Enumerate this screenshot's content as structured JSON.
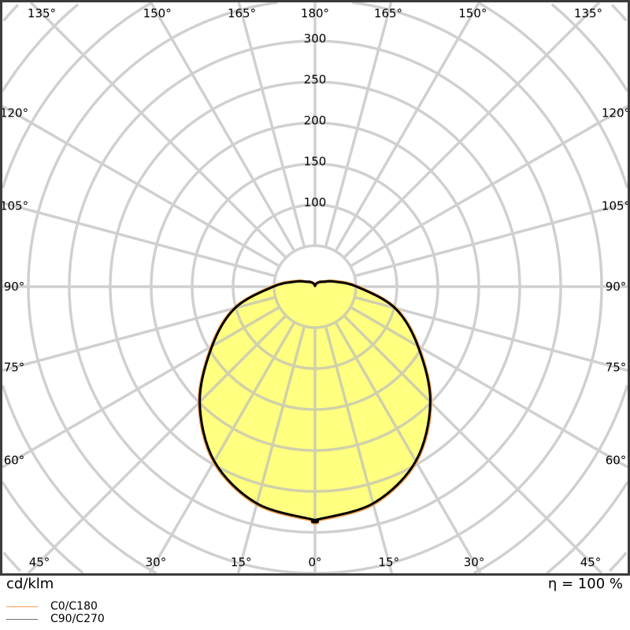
{
  "chart_data": {
    "type": "polar",
    "unit_label": "cd/klm",
    "efficiency_label": "η = 100 %",
    "radial_ticks": [
      100,
      150,
      200,
      250,
      300
    ],
    "radial_tick_labels": [
      "100",
      "150",
      "200",
      "250",
      "300"
    ],
    "radial_grid_step": 50,
    "angle_tick_labels": [
      {
        "angle": 135,
        "label": "135°"
      },
      {
        "angle": 150,
        "label": "150°"
      },
      {
        "angle": 165,
        "label": "165°"
      },
      {
        "angle": 180,
        "label": "180°"
      },
      {
        "angle": -165,
        "label": "165°"
      },
      {
        "angle": -150,
        "label": "150°"
      },
      {
        "angle": -135,
        "label": "135°"
      },
      {
        "angle": 120,
        "label": "120°"
      },
      {
        "angle": -120,
        "label": "120°"
      },
      {
        "angle": 105,
        "label": "105°"
      },
      {
        "angle": -105,
        "label": "105°"
      },
      {
        "angle": 90,
        "label": "90°"
      },
      {
        "angle": -90,
        "label": "90°"
      },
      {
        "angle": 75,
        "label": "75°"
      },
      {
        "angle": -75,
        "label": "75°"
      },
      {
        "angle": 60,
        "label": "60°"
      },
      {
        "angle": -60,
        "label": "60°"
      },
      {
        "angle": 45,
        "label": "45°"
      },
      {
        "angle": 30,
        "label": "30°"
      },
      {
        "angle": 15,
        "label": "15°"
      },
      {
        "angle": 0,
        "label": "0°"
      },
      {
        "angle": -15,
        "label": "15°"
      },
      {
        "angle": -30,
        "label": "30°"
      },
      {
        "angle": -45,
        "label": "45°"
      }
    ],
    "angles": [
      0,
      15,
      30,
      45,
      60,
      75,
      90,
      105,
      120,
      135,
      150,
      165,
      180
    ],
    "series": [
      {
        "name": "C0/C180",
        "color": "#f5a050",
        "values": [
          286,
          275,
          247,
          200,
          146,
          102,
          52,
          25,
          12,
          8,
          5,
          3,
          1
        ]
      },
      {
        "name": "C90/C270",
        "color": "#000000",
        "values": [
          285,
          274,
          246,
          199,
          145,
          101,
          51,
          24,
          12,
          8,
          5,
          3,
          1
        ]
      }
    ],
    "fill_color": "#ffff80",
    "grid": true
  },
  "legend": [
    {
      "label": "C0/C180",
      "color": "#f5a050"
    },
    {
      "label": "C90/C270",
      "color": "#707070"
    }
  ]
}
